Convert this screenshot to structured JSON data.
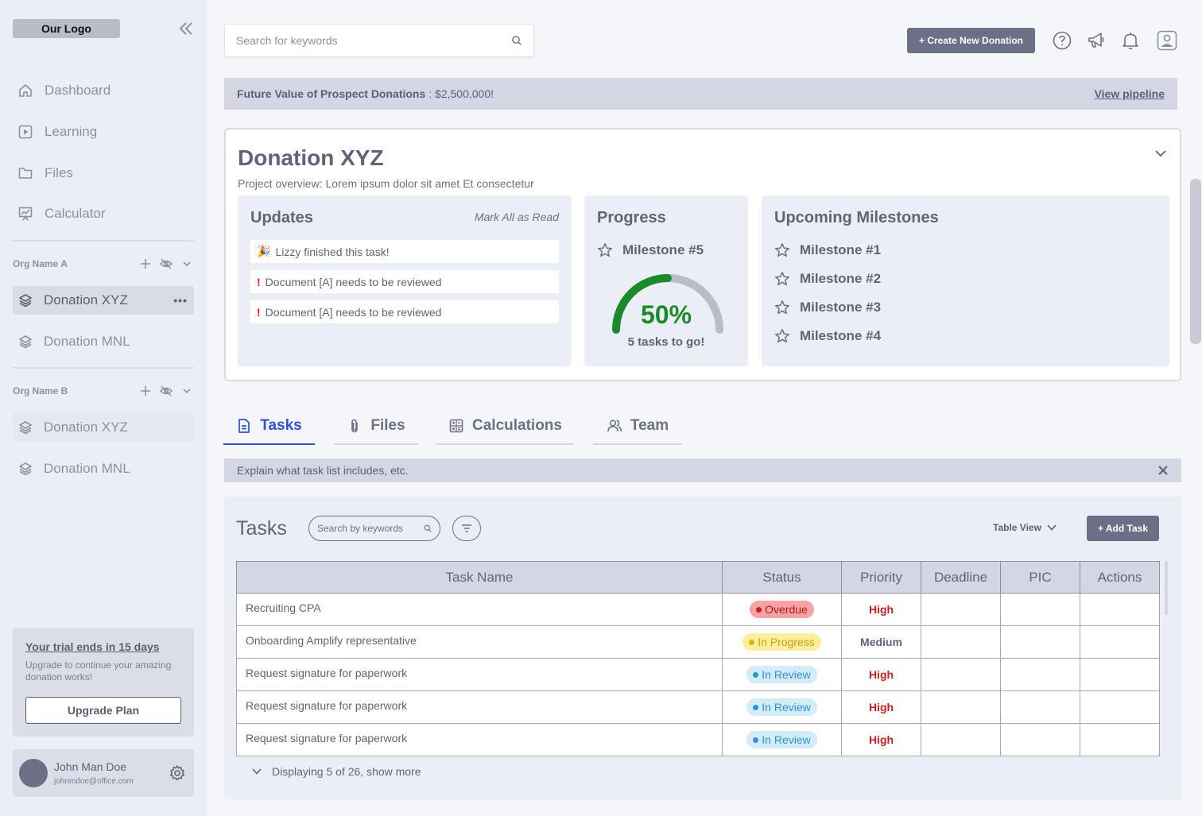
{
  "sidebar": {
    "logo": "Our Logo",
    "nav": [
      {
        "label": "Dashboard",
        "icon": "home-icon"
      },
      {
        "label": "Learning",
        "icon": "play-icon"
      },
      {
        "label": "Files",
        "icon": "folder-icon"
      },
      {
        "label": "Calculator",
        "icon": "chart-icon"
      }
    ],
    "orgs": [
      {
        "name": "Org Name A",
        "donations": [
          "Donation XYZ",
          "Donation MNL"
        ]
      },
      {
        "name": "Org Name B",
        "donations": [
          "Donation XYZ",
          "Donation MNL"
        ]
      }
    ],
    "more_label": "•••",
    "trial": {
      "title": "Your trial ends in 15 days",
      "body": "Upgrade to continue your amazing donation works!",
      "button": "Upgrade Plan"
    },
    "user": {
      "name": "John Man Doe",
      "email": "johnmdoe@office.com"
    }
  },
  "header": {
    "search_placeholder": "Search for keywords",
    "create_button": "+ Create New Donation"
  },
  "banner": {
    "label": "Future Value of Prospect Donations",
    "value": ": $2,500,000!",
    "link": "View pipeline"
  },
  "donation": {
    "title": "Donation XYZ",
    "overview": "Project overview: Lorem ipsum dolor sit amet Et consectetur",
    "updates": {
      "title": "Updates",
      "mark_all": "Mark All as Read",
      "items": [
        {
          "glyph": "🎉",
          "text": "Lizzy finished this task!"
        },
        {
          "glyph": "!",
          "text": "Document [A] needs to be reviewed"
        },
        {
          "glyph": "!",
          "text": "Document [A] needs to be reviewed"
        }
      ]
    },
    "progress": {
      "title": "Progress",
      "milestone": "Milestone #5",
      "percent_label": "50%",
      "percent_value": 0.5,
      "remaining": "5 tasks to go!"
    },
    "milestones": {
      "title": "Upcoming Milestones",
      "items": [
        "Milestone #1",
        "Milestone #2",
        "Milestone #3",
        "Milestone #4"
      ]
    }
  },
  "tabs": [
    {
      "label": "Tasks",
      "icon": "document-icon",
      "active": true
    },
    {
      "label": "Files",
      "icon": "paperclip-icon",
      "active": false
    },
    {
      "label": "Calculations",
      "icon": "calculator-icon",
      "active": false
    },
    {
      "label": "Team",
      "icon": "team-icon",
      "active": false
    }
  ],
  "info_bar": "Explain what task list includes, etc.",
  "tasks": {
    "title": "Tasks",
    "search_placeholder": "Search by keywords",
    "view_label": "Table View",
    "add_button": "+ Add Task",
    "columns": [
      "Task Name",
      "Status",
      "Priority",
      "Deadline",
      "PIC",
      "Actions"
    ],
    "rows": [
      {
        "name": "Recruiting CPA",
        "status": "Overdue",
        "status_kind": "overdue",
        "priority": "High",
        "deadline": "",
        "pic": "",
        "actions": ""
      },
      {
        "name": "Onboarding Amplify representative",
        "status": "In Progress",
        "status_kind": "progress",
        "priority": "Medium",
        "deadline": "",
        "pic": "",
        "actions": ""
      },
      {
        "name": "Request signature for paperwork",
        "status": "In Review",
        "status_kind": "review",
        "priority": "High",
        "deadline": "",
        "pic": "",
        "actions": ""
      },
      {
        "name": "Request signature for paperwork",
        "status": "In Review",
        "status_kind": "review",
        "priority": "High",
        "deadline": "",
        "pic": "",
        "actions": ""
      },
      {
        "name": "Request signature for paperwork",
        "status": "In Review",
        "status_kind": "review",
        "priority": "High",
        "deadline": "",
        "pic": "",
        "actions": ""
      }
    ],
    "footer": "Displaying 5 of 26, show more"
  },
  "colors": {
    "accent": "#2b4fe0",
    "button": "#6b7086",
    "progress_green": "#1a8b2a",
    "danger": "#c81e1e"
  }
}
